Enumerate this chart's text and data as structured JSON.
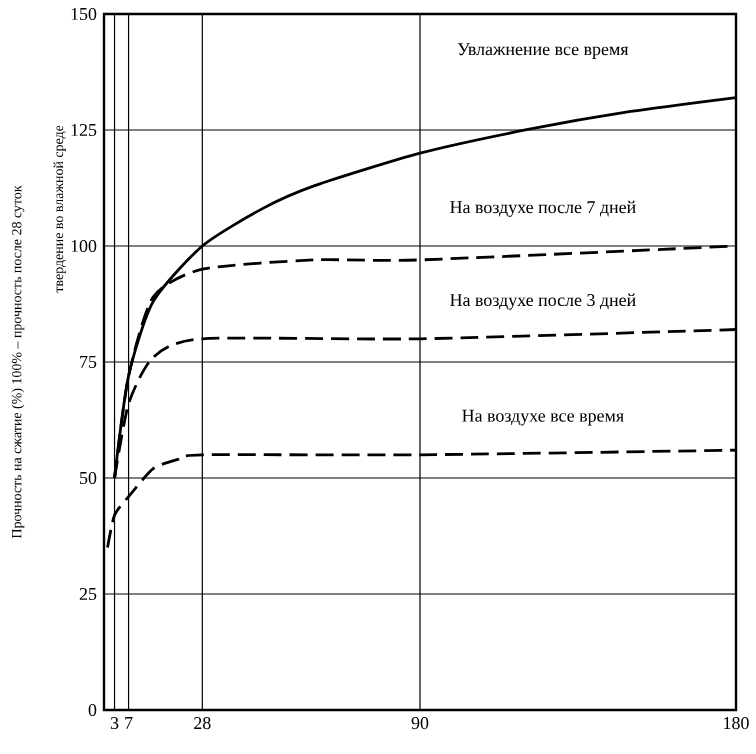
{
  "chart_data": {
    "type": "line",
    "ylabel": "Прочность на сжатие (%) 100% – прочность после 28 суток",
    "annotations": [
      "твердение во влажной среде"
    ],
    "xlim": [
      0,
      180
    ],
    "xticks": [
      3,
      7,
      28,
      90,
      180
    ],
    "ylim": [
      0,
      150
    ],
    "yticks": [
      0,
      25,
      50,
      75,
      100,
      125,
      150
    ],
    "grid": true,
    "marker": "none",
    "series": [
      {
        "name": "Увлажнение все время",
        "color": "#000000",
        "line_style": "solid",
        "x": [
          3,
          7,
          14,
          28,
          45,
          60,
          90,
          120,
          150,
          180
        ],
        "values": [
          50,
          72,
          88,
          100,
          108,
          113,
          120,
          125,
          129,
          132
        ]
      },
      {
        "name": "На воздухе после 7 дней",
        "color": "#000000",
        "line_style": "dashed",
        "x": [
          3,
          7,
          14,
          28,
          60,
          90,
          180
        ],
        "values": [
          50,
          72,
          89,
          95,
          97,
          97,
          100
        ]
      },
      {
        "name": "На воздухе после 3 дней",
        "color": "#000000",
        "line_style": "dashed",
        "x": [
          3,
          7,
          14,
          28,
          90,
          180
        ],
        "values": [
          50,
          66,
          76,
          80,
          80,
          82
        ]
      },
      {
        "name": "На воздухе все время",
        "color": "#000000",
        "line_style": "dashed",
        "x": [
          1,
          3,
          7,
          14,
          21,
          28,
          90,
          180
        ],
        "values": [
          35,
          42,
          46,
          52,
          54,
          55,
          55,
          56
        ]
      }
    ]
  }
}
